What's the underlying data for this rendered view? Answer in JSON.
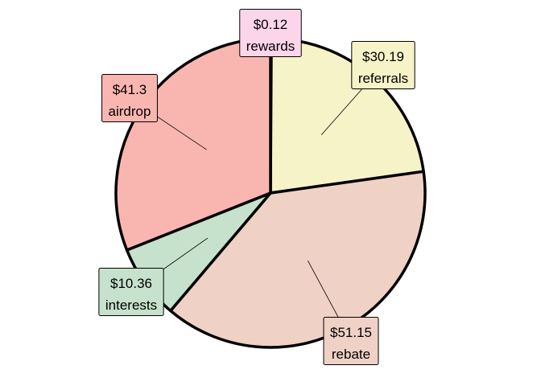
{
  "chart_data": {
    "type": "pie",
    "title": "",
    "slices": [
      {
        "label": "rewards",
        "value_label": "$0.12",
        "value": 0.12,
        "color": "#fbd5ea"
      },
      {
        "label": "referrals",
        "value_label": "$30.19",
        "value": 30.19,
        "color": "#f7f3c9"
      },
      {
        "label": "rebate",
        "value_label": "$51.15",
        "value": 51.15,
        "color": "#efd1c5"
      },
      {
        "label": "interests",
        "value_label": "$10.36",
        "value": 10.36,
        "color": "#c6e1cc"
      },
      {
        "label": "airdrop",
        "value_label": "$41.3",
        "value": 41.3,
        "color": "#f9b6b0"
      }
    ],
    "start_angle": "top",
    "direction": "clockwise",
    "outline_color": "#000000"
  }
}
